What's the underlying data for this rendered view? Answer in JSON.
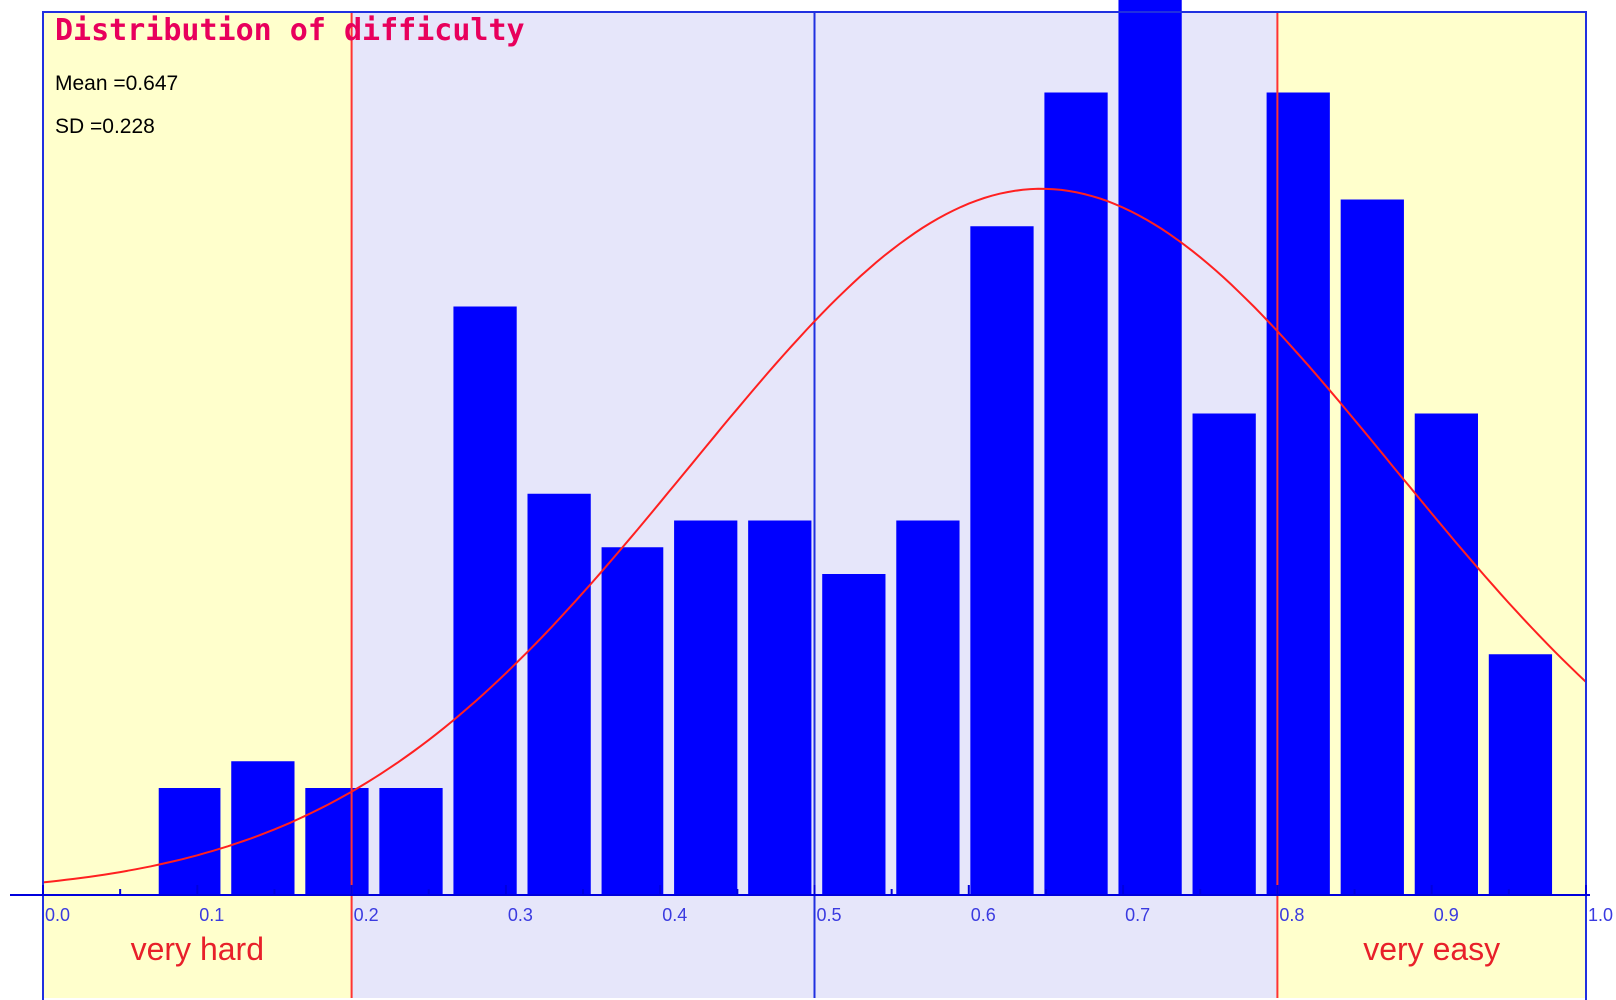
{
  "chart_data": {
    "type": "bar",
    "title": "Distribution of difficulty",
    "stats": {
      "mean": "Mean =0.647",
      "sd": "SD =0.228"
    },
    "xlabel": "",
    "ylabel": "",
    "xlim": [
      0,
      1
    ],
    "ylim": [
      0,
      17
    ],
    "x_ticks": [
      "0.0",
      "0.1",
      "0.2",
      "0.3",
      "0.4",
      "0.5",
      "0.6",
      "0.7",
      "0.8",
      "0.9",
      "1.0"
    ],
    "bins": [
      {
        "x0": 0.075,
        "x1": 0.115,
        "value": 2
      },
      {
        "x0": 0.122,
        "x1": 0.163,
        "value": 2.5
      },
      {
        "x0": 0.17,
        "x1": 0.211,
        "value": 2
      },
      {
        "x0": 0.218,
        "x1": 0.259,
        "value": 2
      },
      {
        "x0": 0.266,
        "x1": 0.307,
        "value": 11
      },
      {
        "x0": 0.314,
        "x1": 0.355,
        "value": 7.5
      },
      {
        "x0": 0.362,
        "x1": 0.402,
        "value": 6.5
      },
      {
        "x0": 0.409,
        "x1": 0.45,
        "value": 7
      },
      {
        "x0": 0.457,
        "x1": 0.498,
        "value": 7
      },
      {
        "x0": 0.505,
        "x1": 0.546,
        "value": 6
      },
      {
        "x0": 0.553,
        "x1": 0.594,
        "value": 7
      },
      {
        "x0": 0.601,
        "x1": 0.642,
        "value": 12.5
      },
      {
        "x0": 0.649,
        "x1": 0.69,
        "value": 15
      },
      {
        "x0": 0.697,
        "x1": 0.738,
        "value": 17.5
      },
      {
        "x0": 0.745,
        "x1": 0.786,
        "value": 9
      },
      {
        "x0": 0.793,
        "x1": 0.834,
        "value": 15
      },
      {
        "x0": 0.841,
        "x1": 0.882,
        "value": 13
      },
      {
        "x0": 0.889,
        "x1": 0.93,
        "value": 9
      },
      {
        "x0": 0.937,
        "x1": 0.978,
        "value": 4.5
      }
    ],
    "normal_curve": {
      "mean": 0.647,
      "sd": 0.228,
      "peak": 13.2
    },
    "zones": [
      {
        "label": "very hard",
        "from": 0.0,
        "to": 0.2,
        "color": "#ffffcc"
      },
      {
        "label": "",
        "from": 0.2,
        "to": 0.8,
        "color": "#e6e6fa"
      },
      {
        "label": "very easy",
        "from": 0.8,
        "to": 1.0,
        "color": "#ffffcc"
      }
    ],
    "reference_lines": [
      0.2,
      0.5,
      0.8
    ],
    "colors": {
      "bar": "#0000ff",
      "curve": "#ff2020",
      "axis": "#0000dd",
      "zone_edge": "#ff3333",
      "frame": "#2030e0",
      "title": "#e8005c"
    }
  }
}
